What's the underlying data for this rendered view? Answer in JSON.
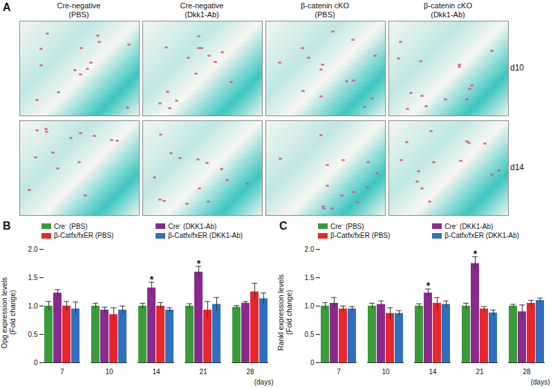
{
  "figure_a": {
    "panel_label": "A",
    "columns": [
      [
        "Cre-negative",
        "(PBS)"
      ],
      [
        "Cre-negative",
        "(Dkk1-Ab)"
      ],
      [
        "β-catenin cKO",
        "(PBS)"
      ],
      [
        "β-catenin cKO",
        "(Dkk1-Ab)"
      ]
    ],
    "rows": [
      "d10",
      "d14"
    ]
  },
  "chart_data": [
    {
      "type": "bar",
      "panel_label": "B",
      "y_label": [
        "Opg expression levels",
        "(Fold change)"
      ],
      "x_label": "(days)",
      "categories": [
        7,
        10,
        14,
        21,
        28
      ],
      "ylim": [
        0,
        2
      ],
      "yticks": [
        0,
        0.5,
        {
          "value": 1,
          "label": "1.0"
        },
        1.5,
        {
          "value": 2,
          "label": "2.0"
        }
      ],
      "legend": "top-left",
      "series": [
        {
          "name": "Cre⁻ (PBS)",
          "color": "#3a9b3a",
          "values": [
            1.0,
            1.0,
            1.0,
            1.0,
            0.98
          ],
          "errors": [
            0.08,
            0.05,
            0.05,
            0.04,
            0.03
          ]
        },
        {
          "name": "Cre⁻ (DKK1-Ab)",
          "color": "#8a2a8f",
          "values": [
            1.23,
            0.93,
            1.32,
            1.6,
            1.05
          ],
          "errors": [
            0.06,
            0.05,
            0.1,
            0.1,
            0.03
          ]
        },
        {
          "name": "β-Catfx/fxER (PBS)",
          "color": "#e8262b",
          "values": [
            1.0,
            0.85,
            1.0,
            0.93,
            1.25
          ],
          "errors": [
            0.08,
            0.12,
            0.06,
            0.15,
            0.15
          ]
        },
        {
          "name": "β-Catfx/fxER (DKK1-Ab)",
          "color": "#2f6fc0",
          "values": [
            0.95,
            0.93,
            0.93,
            1.03,
            1.13
          ],
          "errors": [
            0.12,
            0.07,
            0.04,
            0.12,
            0.1
          ]
        }
      ],
      "annotations": [
        {
          "category": 14,
          "series": "Cre⁻ (DKK1-Ab)",
          "text": "*"
        },
        {
          "category": 21,
          "series": "Cre⁻ (DKK1-Ab)",
          "text": "*"
        }
      ]
    },
    {
      "type": "bar",
      "panel_label": "C",
      "y_label": [
        "Rankl expression levels",
        "(Fold change)"
      ],
      "x_label": "(days)",
      "categories": [
        7,
        10,
        14,
        21,
        28
      ],
      "ylim": [
        0,
        2
      ],
      "yticks": [
        0,
        0.5,
        {
          "value": 1,
          "label": "1.0"
        },
        1.5,
        {
          "value": 2,
          "label": "2.0"
        }
      ],
      "legend": "top-left",
      "series": [
        {
          "name": "Cre⁻ (PBS)",
          "color": "#3a9b3a",
          "values": [
            1.0,
            1.0,
            1.0,
            1.0,
            1.0
          ],
          "errors": [
            0.06,
            0.05,
            0.04,
            0.05,
            0.03
          ]
        },
        {
          "name": "Cre⁻ (DKK1-Ab)",
          "color": "#8a2a8f",
          "values": [
            1.05,
            1.03,
            1.23,
            1.75,
            0.9
          ],
          "errors": [
            0.1,
            0.06,
            0.07,
            0.12,
            0.12
          ]
        },
        {
          "name": "β-Catfx/fxER (PBS)",
          "color": "#e8262b",
          "values": [
            0.95,
            0.87,
            1.05,
            0.95,
            1.05
          ],
          "errors": [
            0.05,
            0.1,
            0.1,
            0.04,
            0.05
          ]
        },
        {
          "name": "β-Catfx/fxER (DKK1-Ab)",
          "color": "#2f6fc0",
          "values": [
            0.95,
            0.87,
            1.03,
            0.88,
            1.1
          ],
          "errors": [
            0.04,
            0.05,
            0.06,
            0.05,
            0.04
          ]
        }
      ],
      "annotations": [
        {
          "category": 14,
          "series": "Cre⁻ (DKK1-Ab)",
          "text": "*"
        },
        {
          "category": 21,
          "series": "Cre⁻ (DKK1-Ab)",
          "text": "*"
        }
      ]
    }
  ]
}
